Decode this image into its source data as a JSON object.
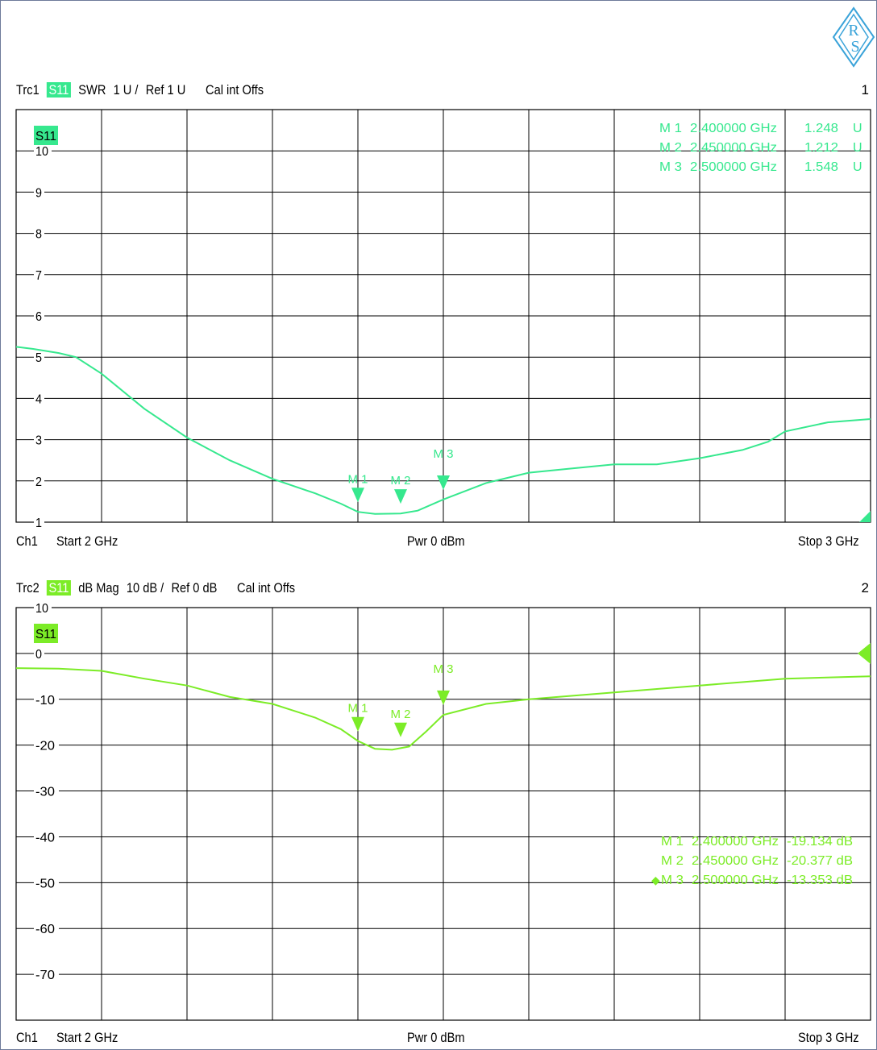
{
  "accent": {
    "trace1": "#36e88e",
    "trace2": "#7cec27",
    "badge1": "#36e88e",
    "badge2": "#7cec27"
  },
  "logo_icon": "rohde-schwarz-logo",
  "panels": [
    {
      "trace": "Trc1",
      "param": "S11",
      "format": "SWR",
      "scale": "1 U /",
      "ref": "Ref 1 U",
      "cal": "Cal int Offs",
      "number": "1",
      "badge": "S11",
      "footer": {
        "channel": "Ch1",
        "start": "Start  2 GHz",
        "pwr": "Pwr  0 dBm",
        "stop": "Stop  3 GHz"
      },
      "markers": [
        {
          "label": "M 1",
          "freq": "2.400000 GHz",
          "value": "1.248",
          "unit": "U"
        },
        {
          "label": "M 2",
          "freq": "2.450000 GHz",
          "value": "1.212",
          "unit": "U"
        },
        {
          "label": "M 3",
          "freq": "2.500000 GHz",
          "value": "1.548",
          "unit": "U"
        }
      ]
    },
    {
      "trace": "Trc2",
      "param": "S11",
      "format": "dB Mag",
      "scale": "10 dB /",
      "ref": "Ref 0 dB",
      "cal": "Cal int Offs",
      "number": "2",
      "badge": "S11",
      "footer": {
        "channel": "Ch1",
        "start": "Start  2 GHz",
        "pwr": "Pwr  0 dBm",
        "stop": "Stop  3 GHz"
      },
      "markers": [
        {
          "label": "M 1",
          "freq": "2.400000 GHz",
          "value": "-19.134 dB"
        },
        {
          "label": "M 2",
          "freq": "2.450000 GHz",
          "value": "-20.377 dB"
        },
        {
          "label": "M 3",
          "freq": "2.500000 GHz",
          "value": "-13.353 dB",
          "active": true
        }
      ]
    }
  ],
  "chart_data": [
    {
      "type": "line",
      "xlabel": "",
      "ylabel": "",
      "xlim": [
        2,
        3
      ],
      "ylim": [
        1,
        11
      ],
      "yticks": [
        1,
        2,
        3,
        4,
        5,
        6,
        7,
        8,
        9,
        10
      ],
      "grid": true,
      "series": [
        {
          "name": "S11",
          "x": [
            2.0,
            2.02,
            2.05,
            2.07,
            2.1,
            2.15,
            2.2,
            2.25,
            2.3,
            2.35,
            2.38,
            2.4,
            2.42,
            2.45,
            2.47,
            2.5,
            2.55,
            2.6,
            2.65,
            2.7,
            2.75,
            2.8,
            2.85,
            2.88,
            2.9,
            2.95,
            3.0
          ],
          "y": [
            5.25,
            5.2,
            5.1,
            5.0,
            4.6,
            3.75,
            3.05,
            2.5,
            2.05,
            1.7,
            1.45,
            1.25,
            1.2,
            1.21,
            1.28,
            1.55,
            1.95,
            2.2,
            2.3,
            2.4,
            2.4,
            2.55,
            2.75,
            2.95,
            3.2,
            3.42,
            3.5
          ]
        }
      ],
      "markers": [
        {
          "label": "M 1",
          "x": 2.4,
          "y": 1.248
        },
        {
          "label": "M 2",
          "x": 2.45,
          "y": 1.212
        },
        {
          "label": "M 3",
          "x": 2.5,
          "y": 1.548
        }
      ]
    },
    {
      "type": "line",
      "xlabel": "",
      "ylabel": "",
      "xlim": [
        2,
        3
      ],
      "ylim": [
        -80,
        10
      ],
      "yticks": [
        10,
        0,
        -10,
        -20,
        -30,
        -40,
        -50,
        -60,
        -70
      ],
      "grid": true,
      "series": [
        {
          "name": "S11",
          "x": [
            2.0,
            2.05,
            2.1,
            2.15,
            2.2,
            2.25,
            2.3,
            2.35,
            2.38,
            2.4,
            2.42,
            2.44,
            2.46,
            2.48,
            2.5,
            2.55,
            2.6,
            2.7,
            2.8,
            2.9,
            3.0
          ],
          "y": [
            -3.2,
            -3.3,
            -3.8,
            -5.5,
            -7.0,
            -9.5,
            -11.0,
            -14.0,
            -16.5,
            -19.1,
            -20.8,
            -21.0,
            -20.3,
            -17.0,
            -13.4,
            -11.0,
            -10.0,
            -8.5,
            -7.0,
            -5.5,
            -5.0
          ]
        }
      ],
      "markers": [
        {
          "label": "M 1",
          "x": 2.4,
          "y": -19.134
        },
        {
          "label": "M 2",
          "x": 2.45,
          "y": -20.377
        },
        {
          "label": "M 3",
          "x": 2.5,
          "y": -13.353
        }
      ]
    }
  ]
}
